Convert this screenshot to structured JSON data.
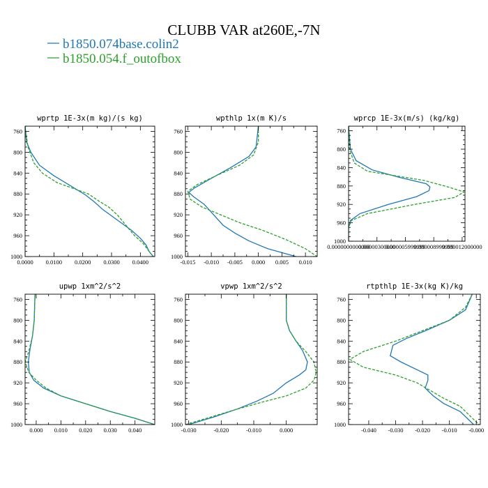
{
  "figure": {
    "title": "CLUBB VAR at260E,-7N",
    "legend": [
      {
        "label": "b1850.074base.colin2",
        "color": "#1f77b4"
      },
      {
        "label": "b1850.054.f_outofbox",
        "color": "#2ca02c"
      }
    ]
  },
  "chart_data": [
    {
      "type": "line",
      "title": "wprtp  1E-3x(m kg)/(s kg)",
      "xlim": [
        0.0,
        0.045
      ],
      "ylim": [
        1000,
        750
      ],
      "xticks": [
        0.0,
        0.01,
        0.02,
        0.03,
        0.04
      ],
      "xtick_labels": [
        "0.0000",
        "0.0100",
        "0.0200",
        "0.0300",
        "0.0400"
      ],
      "yticks": [
        760,
        800,
        840,
        880,
        920,
        960,
        1000
      ],
      "series": [
        {
          "name": "b1850.074base.colin2",
          "color": "#1f77b4",
          "dash": "",
          "x": [
            0.0,
            0.0005,
            0.002,
            0.005,
            0.01,
            0.016,
            0.021,
            0.024,
            0.027,
            0.032,
            0.037,
            0.04,
            0.042,
            0.043,
            0.0445
          ],
          "y": [
            750,
            780,
            800,
            825,
            845,
            865,
            882,
            895,
            910,
            930,
            950,
            965,
            978,
            990,
            1000
          ]
        },
        {
          "name": "b1850.054.f_outofbox",
          "color": "#2ca02c",
          "dash": "4,2",
          "x": [
            0.0,
            0.001,
            0.003,
            0.006,
            0.011,
            0.017,
            0.022,
            0.026,
            0.029,
            0.032,
            0.035,
            0.038,
            0.041,
            0.043,
            0.0445
          ],
          "y": [
            750,
            790,
            820,
            840,
            858,
            870,
            880,
            895,
            905,
            920,
            940,
            960,
            975,
            990,
            1000
          ]
        }
      ]
    },
    {
      "type": "line",
      "title": "wpthlp  1x(m K)/s",
      "xlim": [
        -0.0155,
        0.0125
      ],
      "ylim": [
        1000,
        750
      ],
      "xticks": [
        -0.015,
        -0.01,
        -0.005,
        0.0,
        0.005,
        0.01
      ],
      "xtick_labels": [
        "-0.015",
        "-0.010",
        "-0.005",
        "0.000",
        "0.005",
        "0.010"
      ],
      "yticks": [
        760,
        800,
        840,
        880,
        920,
        960,
        1000
      ],
      "series": [
        {
          "name": "b1850.074base.colin2",
          "color": "#1f77b4",
          "dash": "",
          "x": [
            0.0,
            -0.0005,
            -0.002,
            -0.006,
            -0.01,
            -0.0135,
            -0.0148,
            -0.0138,
            -0.0115,
            -0.0095,
            -0.0075,
            -0.005,
            -0.002,
            0.002,
            0.006,
            0.008
          ],
          "y": [
            750,
            790,
            808,
            830,
            850,
            868,
            877,
            885,
            900,
            920,
            940,
            955,
            970,
            985,
            995,
            1000
          ]
        },
        {
          "name": "b1850.054.f_outofbox",
          "color": "#2ca02c",
          "dash": "4,2",
          "x": [
            0.0,
            0.0,
            -0.001,
            -0.004,
            -0.009,
            -0.013,
            -0.015,
            -0.0145,
            -0.012,
            -0.008,
            -0.004,
            0.001,
            0.006,
            0.01,
            0.0125
          ],
          "y": [
            750,
            780,
            805,
            825,
            845,
            862,
            875,
            890,
            905,
            920,
            935,
            950,
            968,
            985,
            1000
          ]
        }
      ]
    },
    {
      "type": "line",
      "title": "wprcp  1E-3x(m/s) (kg/kg)",
      "xlim": [
        0.0,
        1.23e-05
      ],
      "ylim": [
        1000,
        750
      ],
      "xticks": [
        0.0,
        3e-06,
        6e-06,
        9e-06,
        1.2e-05
      ],
      "xtick_labels": [
        "0.0000000000000",
        "0.00000300000",
        "0.000005999999",
        "0.000008999999",
        "0.000012000000"
      ],
      "yticks": [
        760,
        800,
        840,
        880,
        920,
        960,
        1000
      ],
      "series": [
        {
          "name": "b1850.074base.colin2",
          "color": "#1f77b4",
          "dash": "",
          "x": [
            0.0,
            2e-07,
            8e-07,
            2.5e-06,
            5.5e-06,
            8.2e-06,
            8.6e-06,
            8.5e-06,
            7.2e-06,
            4.2e-06,
            1.2e-06,
            2e-07,
            0.0,
            0.0
          ],
          "y": [
            750,
            800,
            825,
            845,
            862,
            875,
            882,
            890,
            903,
            920,
            940,
            955,
            970,
            1000
          ]
        },
        {
          "name": "b1850.054.f_outofbox",
          "color": "#2ca02c",
          "dash": "4,2",
          "x": [
            0.0,
            1e-07,
            6e-07,
            2e-06,
            5e-06,
            8e-06,
            1.05e-05,
            1.22e-05,
            1.12e-05,
            7e-06,
            2e-06,
            3e-07,
            0.0,
            0.0
          ],
          "y": [
            750,
            800,
            830,
            848,
            858,
            868,
            882,
            893,
            905,
            920,
            940,
            955,
            970,
            1000
          ]
        }
      ]
    },
    {
      "type": "line",
      "title": "upwp  1xm^2/s^2",
      "xlim": [
        -0.0045,
        0.048
      ],
      "ylim": [
        1000,
        750
      ],
      "xticks": [
        0.0,
        0.01,
        0.02,
        0.03,
        0.04
      ],
      "xtick_labels": [
        "0.000",
        "0.010",
        "0.020",
        "0.030",
        "0.040"
      ],
      "yticks": [
        760,
        800,
        840,
        880,
        920,
        960,
        1000
      ],
      "series": [
        {
          "name": "b1850.074base.colin2",
          "color": "#1f77b4",
          "dash": "",
          "x": [
            -0.0005,
            -0.0008,
            -0.0015,
            -0.0025,
            -0.0032,
            -0.0028,
            -0.001,
            0.003,
            0.01,
            0.02,
            0.03,
            0.04,
            0.048
          ],
          "y": [
            750,
            800,
            830,
            855,
            880,
            900,
            915,
            930,
            945,
            960,
            975,
            988,
            1000
          ]
        },
        {
          "name": "b1850.054.f_outofbox",
          "color": "#2ca02c",
          "dash": "4,2",
          "x": [
            -0.0005,
            -0.0008,
            -0.0015,
            -0.003,
            -0.0045,
            -0.003,
            0.0,
            0.004,
            0.01,
            0.02,
            0.03,
            0.04,
            0.048
          ],
          "y": [
            750,
            800,
            830,
            860,
            880,
            900,
            915,
            930,
            945,
            960,
            975,
            988,
            1000
          ]
        }
      ]
    },
    {
      "type": "line",
      "title": "vpwp  1xm^2/s^2",
      "xlim": [
        -0.031,
        0.0095
      ],
      "ylim": [
        1000,
        750
      ],
      "xticks": [
        -0.03,
        -0.02,
        -0.01,
        0.0
      ],
      "xtick_labels": [
        "-0.030",
        "-0.020",
        "-0.010",
        "0.000"
      ],
      "yticks": [
        760,
        800,
        840,
        880,
        920,
        960,
        1000
      ],
      "series": [
        {
          "name": "b1850.074base.colin2",
          "color": "#1f77b4",
          "dash": "",
          "x": [
            0.0,
            0.0,
            0.001,
            0.003,
            0.005,
            0.0065,
            0.006,
            0.004,
            0.0,
            -0.004,
            -0.009,
            -0.015,
            -0.022,
            -0.03
          ],
          "y": [
            750,
            800,
            820,
            840,
            858,
            880,
            895,
            905,
            920,
            940,
            955,
            970,
            985,
            1000
          ]
        },
        {
          "name": "b1850.054.f_outofbox",
          "color": "#2ca02c",
          "dash": "4,2",
          "x": [
            0.0,
            0.0,
            0.001,
            0.003,
            0.006,
            0.0085,
            0.0092,
            0.0085,
            0.006,
            0.0,
            -0.008,
            -0.016,
            -0.024,
            -0.031
          ],
          "y": [
            750,
            800,
            820,
            840,
            860,
            880,
            900,
            915,
            930,
            945,
            958,
            972,
            987,
            1000
          ]
        }
      ]
    },
    {
      "type": "line",
      "title": "rtpthlp  1E-3x(kg K)/kg",
      "xlim": [
        -0.0475,
        0.0015
      ],
      "ylim": [
        1000,
        750
      ],
      "xticks": [
        -0.04,
        -0.03,
        -0.02,
        -0.01,
        0.0
      ],
      "xtick_labels": [
        "-0.040",
        "-0.030",
        "-0.020",
        "-0.010",
        "-0.000"
      ],
      "yticks": [
        760,
        800,
        840,
        880,
        920,
        960,
        1000
      ],
      "series": [
        {
          "name": "b1850.074base.colin2",
          "color": "#1f77b4",
          "dash": "",
          "x": [
            -0.0015,
            -0.004,
            -0.01,
            -0.018,
            -0.026,
            -0.031,
            -0.032,
            -0.028,
            -0.022,
            -0.018,
            -0.018,
            -0.019,
            -0.016,
            -0.012,
            -0.006,
            -0.003,
            -0.001
          ],
          "y": [
            750,
            780,
            800,
            818,
            835,
            848,
            868,
            880,
            895,
            905,
            915,
            930,
            945,
            960,
            975,
            990,
            1000
          ]
        },
        {
          "name": "b1850.054.f_outofbox",
          "color": "#2ca02c",
          "dash": "4,2",
          "x": [
            -0.0015,
            -0.004,
            -0.01,
            -0.02,
            -0.03,
            -0.042,
            -0.047,
            -0.042,
            -0.03,
            -0.022,
            -0.017,
            -0.012,
            -0.006,
            -0.002,
            0.001
          ],
          "y": [
            750,
            775,
            800,
            820,
            840,
            860,
            875,
            890,
            905,
            920,
            935,
            950,
            965,
            985,
            1000
          ]
        }
      ]
    }
  ]
}
